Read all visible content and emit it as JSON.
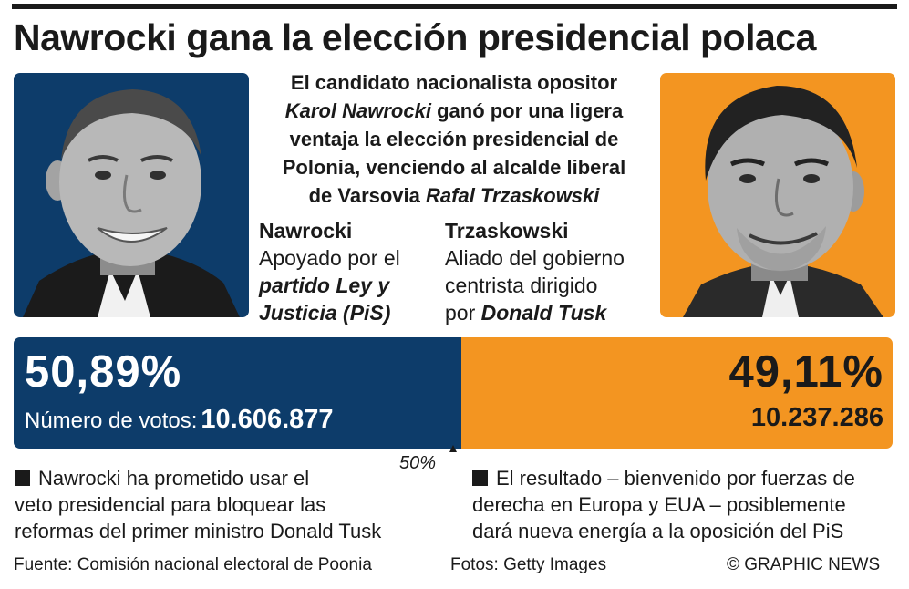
{
  "title": "Nawrocki gana la elección presidencial polaca",
  "intro": {
    "line1": "El candidato nacionalista opositor",
    "name1": "Karol Nawrocki",
    "line2": "ganó por una ligera",
    "line3": "ventaja la elección presidencial de",
    "line4": "Polonia, venciendo al alcalde liberal",
    "line5": "de Varsovia",
    "name2": "Rafal Trzaskowski"
  },
  "candidates": [
    {
      "name": "Nawrocki",
      "desc1": "Apoyado por el",
      "desc2": "partido Ley y",
      "desc3": "Justicia (PiS)",
      "photo_bg": "#0d3c6a"
    },
    {
      "name": "Trzaskowski",
      "desc1": "Aliado del gobierno",
      "desc2": "centrista dirigido",
      "desc3_prefix": "por",
      "desc3_bold": "Donald Tusk",
      "photo_bg": "#f39521"
    }
  ],
  "chart_data": {
    "type": "bar",
    "orientation": "horizontal-stacked",
    "categories": [
      "Nawrocki",
      "Trzaskowski"
    ],
    "values": [
      50.89,
      49.11
    ],
    "value_labels": [
      "50,89%",
      "49,11%"
    ],
    "votes": [
      10606877,
      10237286
    ],
    "votes_labels": [
      "10.606.877",
      "10.237.286"
    ],
    "votes_caption": "Número de votos:",
    "midpoint_label": "50%",
    "colors": [
      "#0d3c6a",
      "#f39521"
    ],
    "total_percent": 100
  },
  "notes": [
    {
      "line1": "Nawrocki ha prometido usar el",
      "line2": "veto presidencial para bloquear las",
      "line3": "reformas del primer ministro Donald Tusk"
    },
    {
      "line1": "El resultado – bienvenido por fuerzas de",
      "line2": "derecha en Europa y EUA – posiblemente",
      "line3": "dará nueva energía a la oposición del PiS"
    }
  ],
  "footer": {
    "source": "Fuente: Comisión nacional electoral de Poonia",
    "photos": "Fotos: Getty Images",
    "credit": "© GRAPHIC NEWS"
  }
}
